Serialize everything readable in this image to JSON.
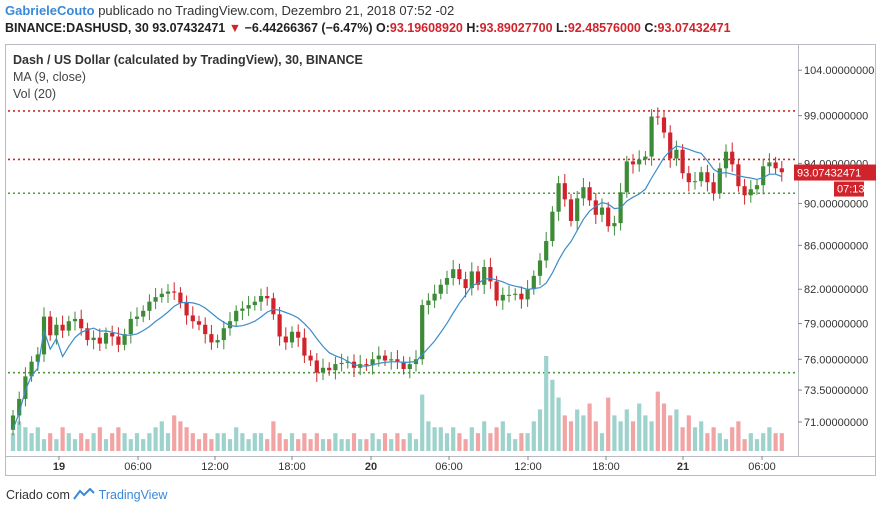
{
  "header": {
    "user": "GabrieleCouto",
    "published": "publicado no TradingView.com, Dezembro 21, 2018 07:52 -02",
    "symbol": "BINANCE:DASHUSD, 30",
    "last": "93.07432471",
    "change": "−6.44266367 (−6.47%)",
    "open_label": "O:",
    "open": "93.19608920",
    "high_label": "H:",
    "high": "93.89027700",
    "low_label": "L:",
    "low": "92.48576000",
    "close_label": "C:",
    "close": "93.07432471"
  },
  "legend": {
    "title": "Dash / US Dollar (calculated by TradingView), 30, BINANCE",
    "ma": "MA (9, close)",
    "vol": "Vol (20)"
  },
  "price_tag": "93.07432471",
  "time_tag": "07:13",
  "footer": {
    "created": "Criado com",
    "brand": "TradingView"
  },
  "colors": {
    "up": "#3d8a37",
    "down": "#d0232b",
    "up_vol": "#9ed2cd",
    "down_vol": "#f2a4a4",
    "ma": "#3c8cc9",
    "red_line": "#cc2a2a",
    "green_line": "#4f9a3a",
    "user": "#3a88d8"
  },
  "chart_data": {
    "type": "candlestick",
    "y_scale": "log",
    "ylim": [
      68.5,
      107
    ],
    "y_ticks": [
      "104.00000000",
      "99.00000000",
      "94.00000000",
      "90.00000000",
      "86.00000000",
      "82.00000000",
      "79.00000000",
      "76.00000000",
      "73.50000000",
      "71.00000000"
    ],
    "x_ticks": [
      "19",
      "06:00",
      "12:00",
      "18:00",
      "20",
      "06:00",
      "12:00",
      "18:00",
      "21",
      "06:00"
    ],
    "horizontal_lines": [
      {
        "price": 99.5,
        "color": "red"
      },
      {
        "price": 94.4,
        "color": "red"
      },
      {
        "price": 91.0,
        "color": "green"
      },
      {
        "price": 74.9,
        "color": "green"
      }
    ],
    "closes": [
      71.5,
      72.8,
      74.6,
      75.8,
      76.4,
      79.6,
      78.0,
      78.9,
      78.4,
      79.2,
      79.4,
      78.6,
      77.6,
      77.8,
      77.3,
      78.2,
      77.9,
      77.2,
      78.1,
      79.4,
      79.6,
      80.1,
      80.9,
      81.3,
      81.6,
      81.8,
      81.7,
      80.8,
      79.7,
      79.2,
      78.9,
      78.1,
      77.4,
      77.6,
      78.6,
      79.2,
      80.1,
      80.3,
      80.6,
      80.9,
      81.4,
      81.2,
      79.8,
      77.9,
      77.4,
      78.3,
      77.8,
      76.3,
      75.9,
      74.9,
      75.3,
      75.1,
      75.6,
      75.7,
      75.8,
      75.3,
      75.6,
      75.5,
      76.0,
      76.3,
      75.9,
      76.0,
      75.8,
      75.2,
      75.6,
      76.0,
      80.6,
      81.0,
      81.6,
      82.4,
      83.0,
      83.8,
      82.9,
      82.1,
      83.6,
      82.4,
      84.0,
      82.7,
      81.0,
      81.5,
      81.5,
      81.6,
      81.1,
      82.0,
      83.2,
      84.6,
      86.4,
      89.2,
      92.0,
      90.4,
      88.3,
      90.5,
      91.6,
      90.3,
      88.9,
      89.6,
      87.8,
      88.1,
      91.1,
      94.2,
      93.9,
      94.4,
      94.7,
      98.9,
      98.8,
      97.2,
      94.5,
      95.4,
      93.0,
      92.1,
      92.2,
      93.1,
      92.1,
      91.0,
      93.5,
      95.2,
      93.9,
      91.7,
      90.8,
      91.4,
      91.8,
      93.7,
      94.1,
      93.5,
      93.1
    ],
    "volume_scale": [
      0.3,
      0.5,
      0.4,
      0.3,
      0.4,
      0.2,
      0.3,
      0.2,
      0.4,
      0.3,
      0.2,
      0.3,
      0.2,
      0.3,
      0.4,
      0.2,
      0.3,
      0.4,
      0.3,
      0.2,
      0.3,
      0.2,
      0.3,
      0.4,
      0.5,
      0.3,
      0.6,
      0.5,
      0.4,
      0.3,
      0.2,
      0.3,
      0.2,
      0.3,
      0.3,
      0.2,
      0.4,
      0.3,
      0.2,
      0.3,
      0.3,
      0.2,
      0.5,
      0.3,
      0.2,
      0.3,
      0.2,
      0.3,
      0.2,
      0.3,
      0.2,
      0.2,
      0.3,
      0.2,
      0.2,
      0.3,
      0.2,
      0.2,
      0.3,
      0.2,
      0.3,
      0.2,
      0.3,
      0.2,
      0.3,
      0.2,
      0.95,
      0.5,
      0.4,
      0.4,
      0.3,
      0.4,
      0.3,
      0.2,
      0.4,
      0.3,
      0.5,
      0.3,
      0.4,
      0.5,
      0.3,
      0.2,
      0.3,
      0.3,
      0.5,
      0.7,
      1.6,
      1.2,
      0.9,
      0.6,
      0.5,
      0.7,
      0.6,
      0.8,
      0.5,
      0.3,
      0.9,
      0.6,
      0.5,
      0.7,
      0.5,
      0.8,
      0.6,
      0.5,
      1.0,
      0.8,
      0.6,
      0.7,
      0.4,
      0.6,
      0.4,
      0.5,
      0.3,
      0.4,
      0.3,
      0.2,
      0.4,
      0.5,
      0.2,
      0.3,
      0.2,
      0.3,
      0.4,
      0.3,
      0.3
    ]
  }
}
